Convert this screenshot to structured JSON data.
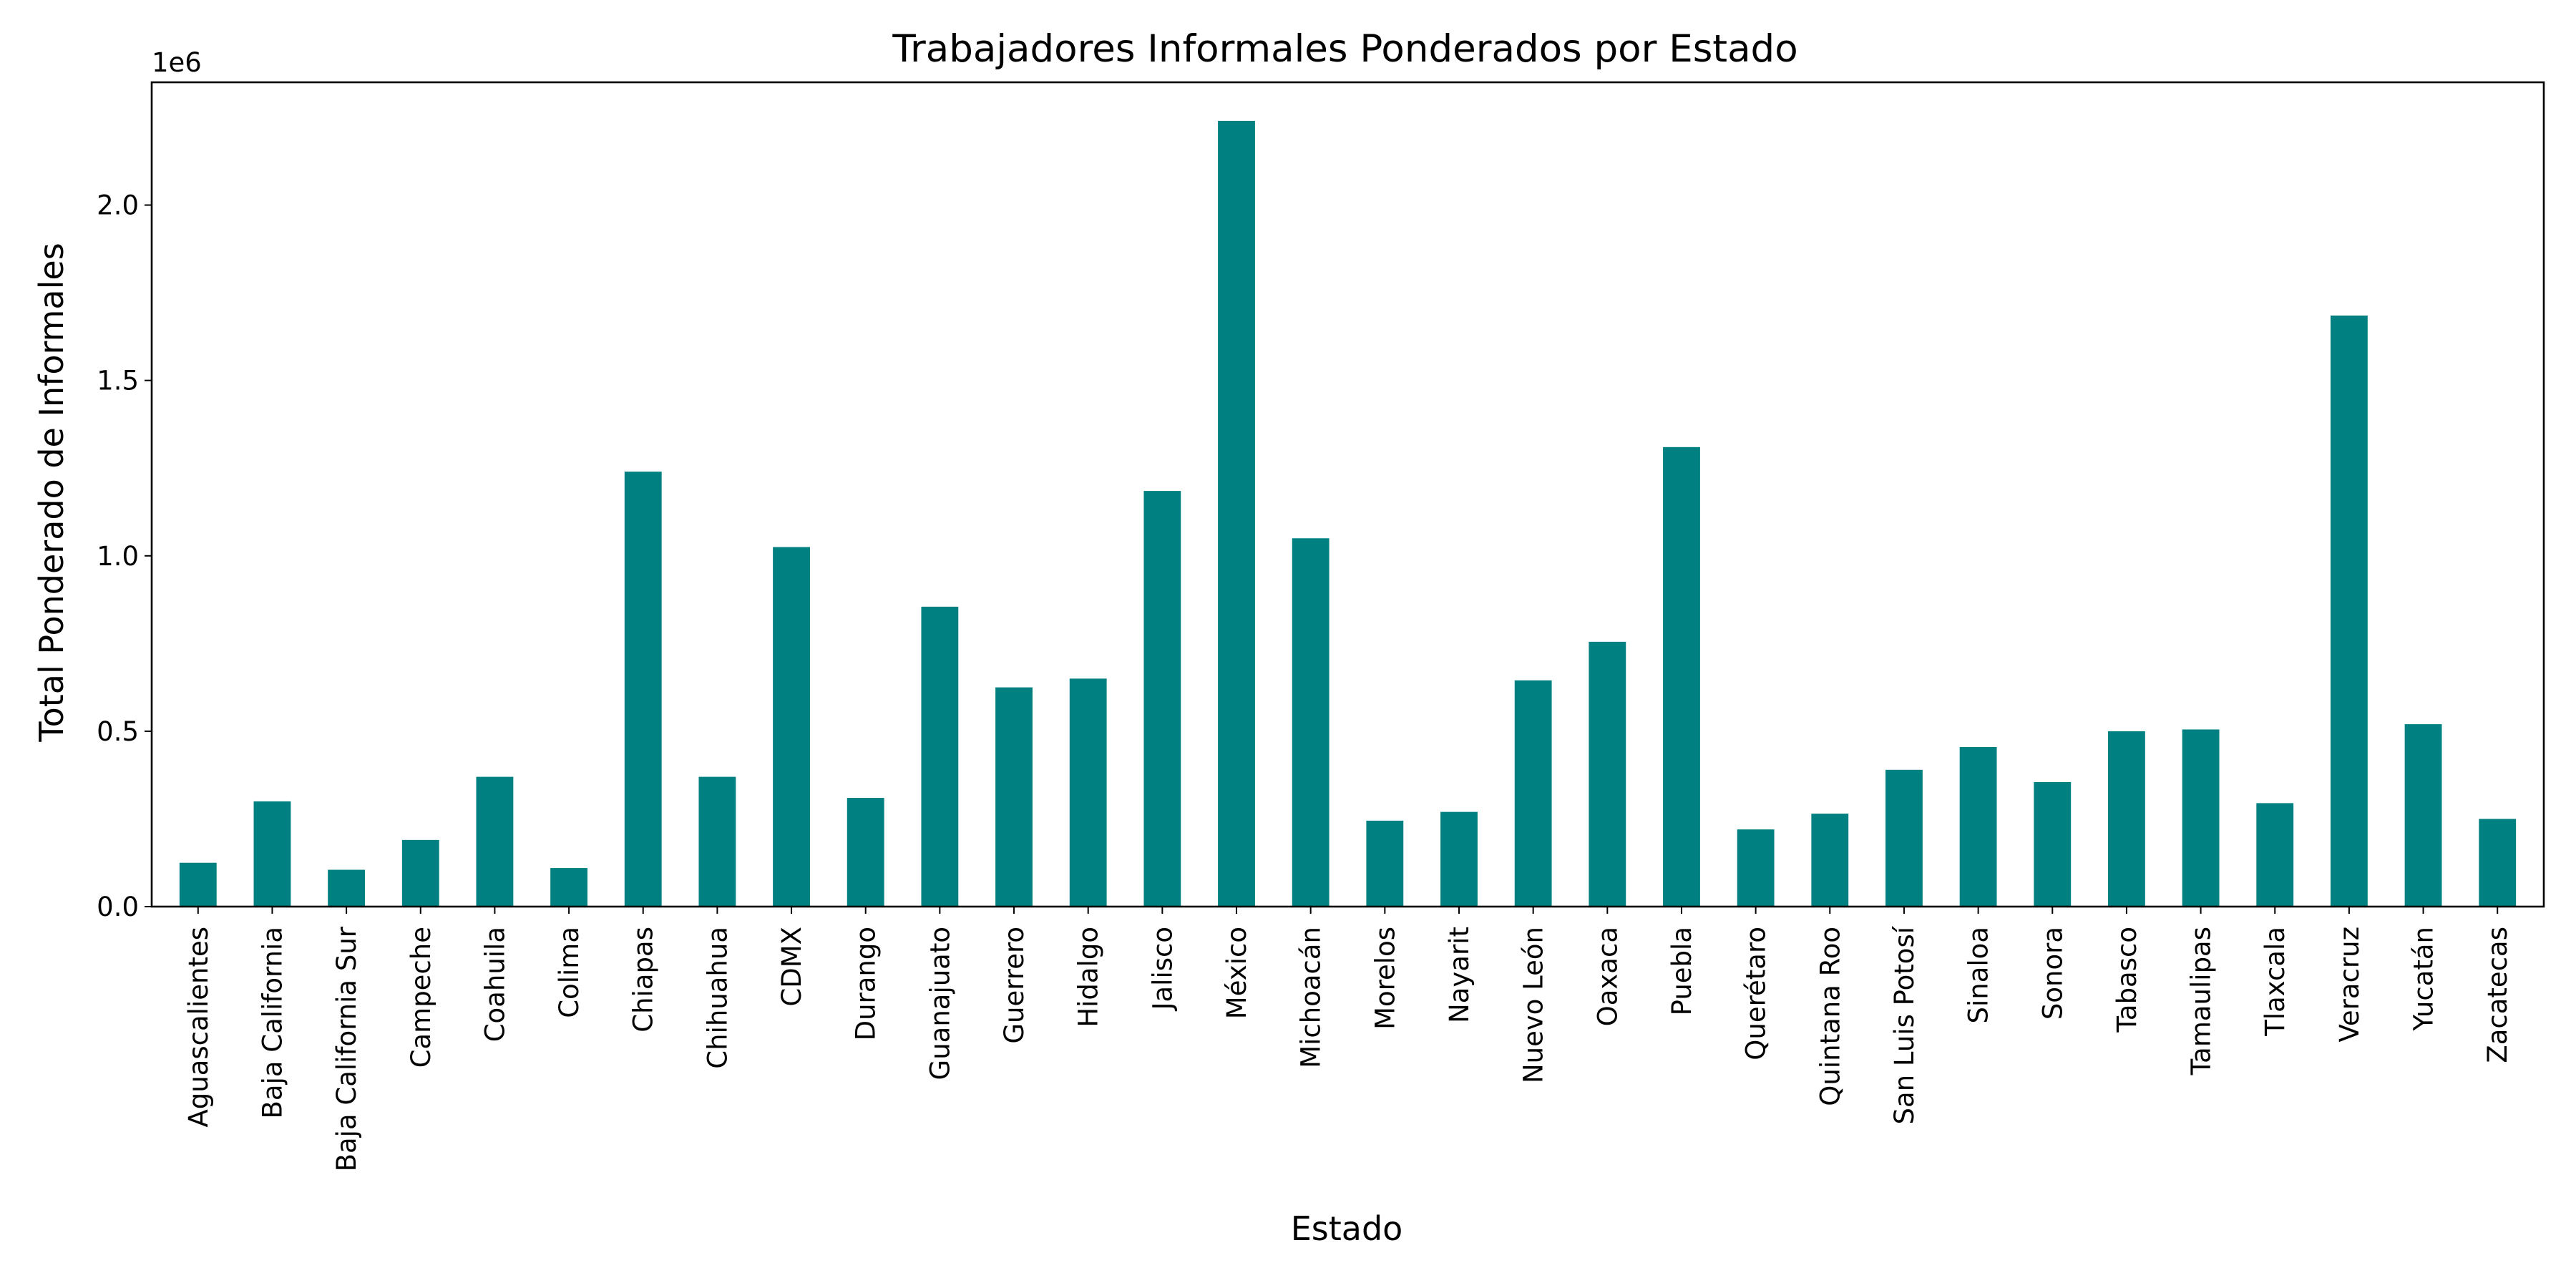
{
  "chart_data": {
    "type": "bar",
    "title": "Trabajadores Informales Ponderados por Estado",
    "xlabel": "Estado",
    "ylabel": "Total Ponderado de Informales",
    "y_offset_label": "1e6",
    "ylim": [
      0,
      2.35
    ],
    "yticks": [
      0.0,
      0.5,
      1.0,
      1.5,
      2.0
    ],
    "ytick_labels": [
      "0.0",
      "0.5",
      "1.0",
      "1.5",
      "2.0"
    ],
    "grid": false,
    "legend": "none",
    "bar_color": "#008080",
    "categories": [
      "Aguascalientes",
      "Baja California",
      "Baja California Sur",
      "Campeche",
      "Coahuila",
      "Colima",
      "Chiapas",
      "Chihuahua",
      "CDMX",
      "Durango",
      "Guanajuato",
      "Guerrero",
      "Hidalgo",
      "Jalisco",
      "México",
      "Michoacán",
      "Morelos",
      "Nayarit",
      "Nuevo León",
      "Oaxaca",
      "Puebla",
      "Querétaro",
      "Quintana Roo",
      "San Luis Potosí",
      "Sinaloa",
      "Sonora",
      "Tabasco",
      "Tamaulipas",
      "Tlaxcala",
      "Veracruz",
      "Yucatán",
      "Zacatecas"
    ],
    "values": [
      0.125,
      0.3,
      0.105,
      0.19,
      0.37,
      0.11,
      1.24,
      0.37,
      1.025,
      0.31,
      0.855,
      0.625,
      0.65,
      1.185,
      2.24,
      1.05,
      0.245,
      0.27,
      0.645,
      0.755,
      1.31,
      0.22,
      0.265,
      0.39,
      0.455,
      0.355,
      0.5,
      0.505,
      0.295,
      1.685,
      0.52,
      0.25
    ]
  }
}
